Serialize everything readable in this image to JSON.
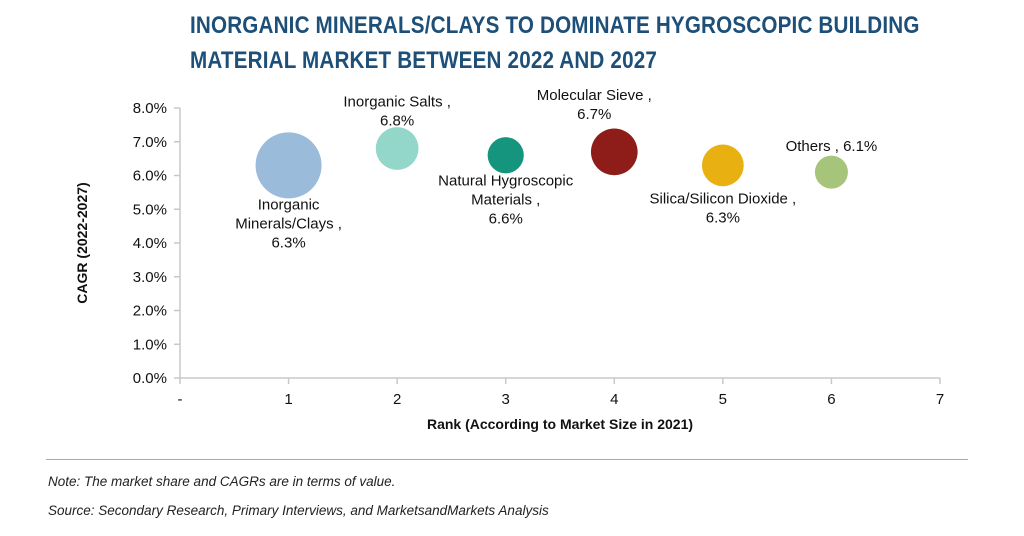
{
  "header": {
    "title_line1": "INORGANIC MINERALS/CLAYS TO DOMINATE HYGROSCOPIC BUILDING",
    "title_line2": "MATERIAL MARKET BETWEEN 2022 AND 2027"
  },
  "chart_data": {
    "type": "scatter",
    "xlabel": "Rank (According to Market Size in 2021)",
    "ylabel": "CAGR (2022-2027)",
    "xlim": [
      0,
      7
    ],
    "ylim": [
      0,
      8
    ],
    "x_ticks": [
      "-",
      "1",
      "2",
      "3",
      "4",
      "5",
      "6",
      "7"
    ],
    "y_ticks": [
      "0.0%",
      "1.0%",
      "2.0%",
      "3.0%",
      "4.0%",
      "5.0%",
      "6.0%",
      "7.0%",
      "8.0%"
    ],
    "grid": false,
    "legend": "none",
    "points": [
      {
        "x": 1,
        "y": 6.3,
        "size": 1.0,
        "color": "#9bbbdb",
        "label_lines": [
          "Inorganic",
          "Minerals/Clays ,",
          "6.3%"
        ]
      },
      {
        "x": 2,
        "y": 6.8,
        "size": 0.42,
        "color": "#93d6ca",
        "label_lines": [
          "Inorganic Salts ,",
          "6.8%"
        ]
      },
      {
        "x": 3,
        "y": 6.6,
        "size": 0.3,
        "color": "#16957e",
        "label_lines": [
          "Natural Hygroscopic",
          "Materials ,",
          "6.6%"
        ]
      },
      {
        "x": 4,
        "y": 6.7,
        "size": 0.5,
        "color": "#8e1c18",
        "label_lines": [
          "Molecular Sieve ,",
          "6.7%"
        ]
      },
      {
        "x": 5,
        "y": 6.3,
        "size": 0.4,
        "color": "#e8b010",
        "label_lines": [
          "Silica/Silicon Dioxide ,",
          "6.3%"
        ]
      },
      {
        "x": 6,
        "y": 6.1,
        "size": 0.25,
        "color": "#a6c47a",
        "label_lines": [
          "Others , 6.1%"
        ]
      }
    ]
  },
  "footer": {
    "note": "Note: The market share and CAGRs are in terms of value.",
    "source": "Source: Secondary Research, Primary Interviews, and MarketsandMarkets Analysis"
  }
}
